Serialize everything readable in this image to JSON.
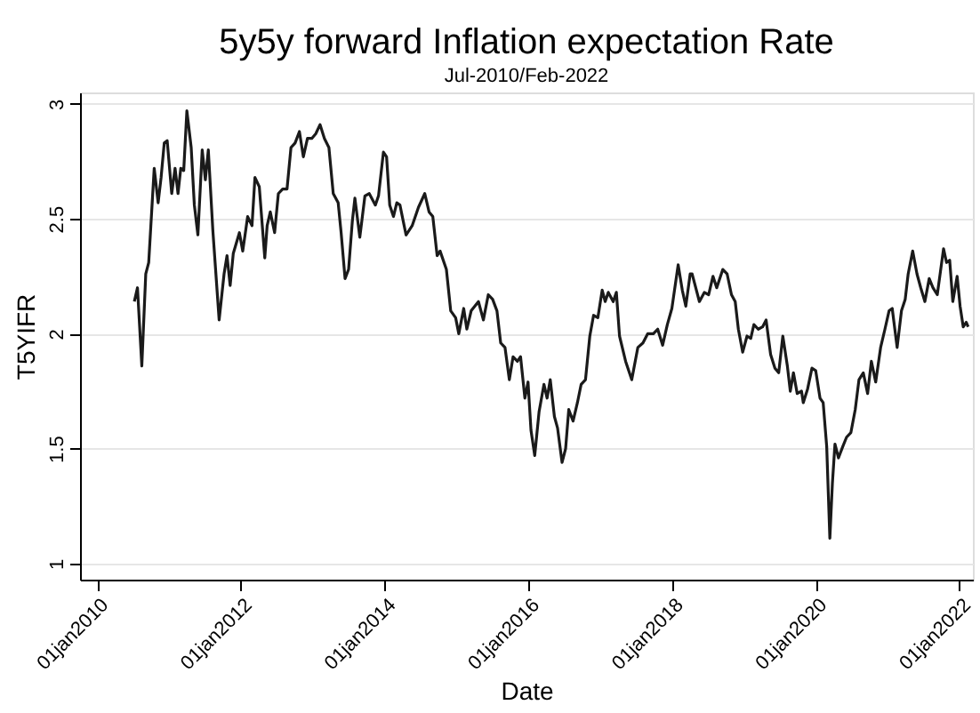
{
  "chart_data": {
    "type": "line",
    "title": "5y5y forward Inflation expectation Rate",
    "subtitle": "Jul-2010/Feb-2022",
    "xlabel": "Date",
    "ylabel": "T5YIFR",
    "x": [
      "2010-07-09",
      "2010-07-25",
      "2010-08-16",
      "2010-09-05",
      "2010-09-20",
      "2010-10-18",
      "2010-11-07",
      "2010-11-22",
      "2010-12-08",
      "2010-12-23",
      "2011-01-15",
      "2011-02-01",
      "2011-02-16",
      "2011-03-02",
      "2011-03-17",
      "2011-04-02",
      "2011-04-24",
      "2011-05-10",
      "2011-05-28",
      "2011-06-19",
      "2011-07-05",
      "2011-07-20",
      "2011-08-12",
      "2011-09-13",
      "2011-10-08",
      "2011-10-23",
      "2011-11-08",
      "2011-11-24",
      "2011-12-25",
      "2012-01-11",
      "2012-02-05",
      "2012-02-27",
      "2012-03-13",
      "2012-04-04",
      "2012-05-02",
      "2012-05-14",
      "2012-05-30",
      "2012-06-21",
      "2012-07-10",
      "2012-08-01",
      "2012-08-23",
      "2012-09-12",
      "2012-10-03",
      "2012-10-25",
      "2012-11-14",
      "2012-12-05",
      "2012-12-27",
      "2013-01-16",
      "2013-02-07",
      "2013-03-01",
      "2013-03-24",
      "2013-04-15",
      "2013-05-10",
      "2013-05-25",
      "2013-06-14",
      "2013-07-02",
      "2013-07-21",
      "2013-08-03",
      "2013-08-28",
      "2013-09-23",
      "2013-10-15",
      "2013-11-15",
      "2013-12-01",
      "2013-12-26",
      "2014-01-11",
      "2014-01-27",
      "2014-02-15",
      "2014-03-04",
      "2014-03-20",
      "2014-04-20",
      "2014-05-21",
      "2014-06-22",
      "2014-07-24",
      "2014-08-15",
      "2014-09-03",
      "2014-09-25",
      "2014-10-10",
      "2014-11-11",
      "2014-12-03",
      "2014-12-28",
      "2015-01-13",
      "2015-02-07",
      "2015-02-23",
      "2015-03-17",
      "2015-04-23",
      "2015-05-18",
      "2015-06-12",
      "2015-07-04",
      "2015-07-26",
      "2015-08-14",
      "2015-09-05",
      "2015-09-27",
      "2015-10-16",
      "2015-11-07",
      "2015-11-23",
      "2015-12-15",
      "2015-12-31",
      "2016-01-15",
      "2016-02-03",
      "2016-02-25",
      "2016-03-21",
      "2016-04-06",
      "2016-04-22",
      "2016-05-13",
      "2016-05-29",
      "2016-06-21",
      "2016-07-09",
      "2016-07-25",
      "2016-08-16",
      "2016-09-07",
      "2016-09-26",
      "2016-10-18",
      "2016-11-09",
      "2016-11-28",
      "2016-12-20",
      "2017-01-11",
      "2017-01-26",
      "2017-02-11",
      "2017-03-08",
      "2017-03-24",
      "2017-04-09",
      "2017-05-10",
      "2017-06-10",
      "2017-07-11",
      "2017-08-06",
      "2017-08-30",
      "2017-09-28",
      "2017-10-20",
      "2017-11-14",
      "2017-12-08",
      "2017-12-31",
      "2018-02-01",
      "2018-02-22",
      "2018-03-12",
      "2018-04-03",
      "2018-04-13",
      "2018-05-20",
      "2018-06-14",
      "2018-07-06",
      "2018-07-28",
      "2018-08-16",
      "2018-09-16",
      "2018-10-08",
      "2018-10-30",
      "2018-11-18",
      "2018-12-04",
      "2018-12-26",
      "2019-01-17",
      "2019-02-05",
      "2019-02-21",
      "2019-03-15",
      "2019-04-06",
      "2019-04-24",
      "2019-05-17",
      "2019-06-08",
      "2019-06-27",
      "2019-07-18",
      "2019-08-10",
      "2019-08-25",
      "2019-09-10",
      "2019-09-29",
      "2019-10-21",
      "2019-10-30",
      "2019-11-21",
      "2019-12-13",
      "2020-01-01",
      "2020-01-23",
      "2020-02-08",
      "2020-02-26",
      "2020-03-13",
      "2020-03-26",
      "2020-04-08",
      "2020-04-26",
      "2020-05-18",
      "2020-06-06",
      "2020-06-28",
      "2020-07-20",
      "2020-08-08",
      "2020-08-30",
      "2020-09-21",
      "2020-10-10",
      "2020-11-01",
      "2020-11-26",
      "2020-12-18",
      "2021-01-08",
      "2021-01-24",
      "2021-02-18",
      "2021-03-12",
      "2021-03-31",
      "2021-04-15",
      "2021-05-08",
      "2021-05-30",
      "2021-06-18",
      "2021-07-09",
      "2021-07-31",
      "2021-08-19",
      "2021-09-10",
      "2021-09-26",
      "2021-10-12",
      "2021-10-27",
      "2021-11-12",
      "2021-11-28",
      "2021-12-20",
      "2022-01-04",
      "2022-01-20",
      "2022-02-04",
      "2022-02-14"
    ],
    "series": [
      {
        "color": "#1a1a1a",
        "values": [
          2.14,
          2.2,
          1.86,
          2.26,
          2.31,
          2.72,
          2.57,
          2.68,
          2.83,
          2.84,
          2.61,
          2.72,
          2.61,
          2.72,
          2.71,
          2.97,
          2.81,
          2.56,
          2.43,
          2.8,
          2.67,
          2.8,
          2.45,
          2.06,
          2.26,
          2.34,
          2.21,
          2.35,
          2.44,
          2.36,
          2.51,
          2.47,
          2.68,
          2.64,
          2.33,
          2.47,
          2.53,
          2.44,
          2.61,
          2.63,
          2.63,
          2.81,
          2.83,
          2.88,
          2.77,
          2.85,
          2.85,
          2.87,
          2.91,
          2.85,
          2.81,
          2.61,
          2.57,
          2.44,
          2.24,
          2.28,
          2.49,
          2.59,
          2.42,
          2.6,
          2.61,
          2.56,
          2.6,
          2.79,
          2.77,
          2.56,
          2.51,
          2.57,
          2.56,
          2.43,
          2.47,
          2.55,
          2.61,
          2.53,
          2.51,
          2.34,
          2.36,
          2.28,
          2.1,
          2.07,
          2.0,
          2.11,
          2.02,
          2.1,
          2.14,
          2.06,
          2.17,
          2.15,
          2.1,
          1.96,
          1.94,
          1.8,
          1.9,
          1.88,
          1.9,
          1.72,
          1.79,
          1.58,
          1.47,
          1.66,
          1.78,
          1.72,
          1.8,
          1.64,
          1.59,
          1.44,
          1.5,
          1.67,
          1.62,
          1.7,
          1.78,
          1.8,
          1.99,
          2.08,
          2.07,
          2.19,
          2.14,
          2.18,
          2.14,
          2.18,
          1.99,
          1.88,
          1.8,
          1.94,
          1.96,
          2.0,
          2.0,
          2.02,
          1.95,
          2.04,
          2.11,
          2.3,
          2.19,
          2.12,
          2.26,
          2.26,
          2.14,
          2.18,
          2.17,
          2.25,
          2.2,
          2.28,
          2.26,
          2.17,
          2.14,
          2.02,
          1.92,
          1.99,
          1.98,
          2.04,
          2.02,
          2.03,
          2.06,
          1.91,
          1.85,
          1.83,
          1.99,
          1.86,
          1.75,
          1.83,
          1.74,
          1.75,
          1.7,
          1.76,
          1.85,
          1.84,
          1.72,
          1.7,
          1.51,
          1.11,
          1.35,
          1.52,
          1.46,
          1.51,
          1.55,
          1.57,
          1.67,
          1.8,
          1.83,
          1.74,
          1.88,
          1.79,
          1.94,
          2.02,
          2.1,
          2.11,
          1.94,
          2.1,
          2.15,
          2.26,
          2.36,
          2.26,
          2.2,
          2.14,
          2.24,
          2.2,
          2.17,
          2.27,
          2.37,
          2.31,
          2.32,
          2.14,
          2.25,
          2.12,
          2.03,
          2.05,
          2.03
        ]
      }
    ],
    "xlim": [
      "2009-10-06",
      "2022-03-10"
    ],
    "xticks": [
      {
        "value": "2010-01-01",
        "label": "01jan2010"
      },
      {
        "value": "2012-01-01",
        "label": "01jan2012"
      },
      {
        "value": "2014-01-01",
        "label": "01jan2014"
      },
      {
        "value": "2016-01-01",
        "label": "01jan2016"
      },
      {
        "value": "2018-01-01",
        "label": "01jan2018"
      },
      {
        "value": "2020-01-01",
        "label": "01jan2020"
      },
      {
        "value": "2022-01-01",
        "label": "01jan2022"
      }
    ],
    "ylim": [
      0.93,
      3.05
    ],
    "yticks": [
      1,
      1.5,
      2,
      2.5,
      3
    ],
    "grid": "y",
    "line_style": "solid",
    "marker": "none"
  }
}
